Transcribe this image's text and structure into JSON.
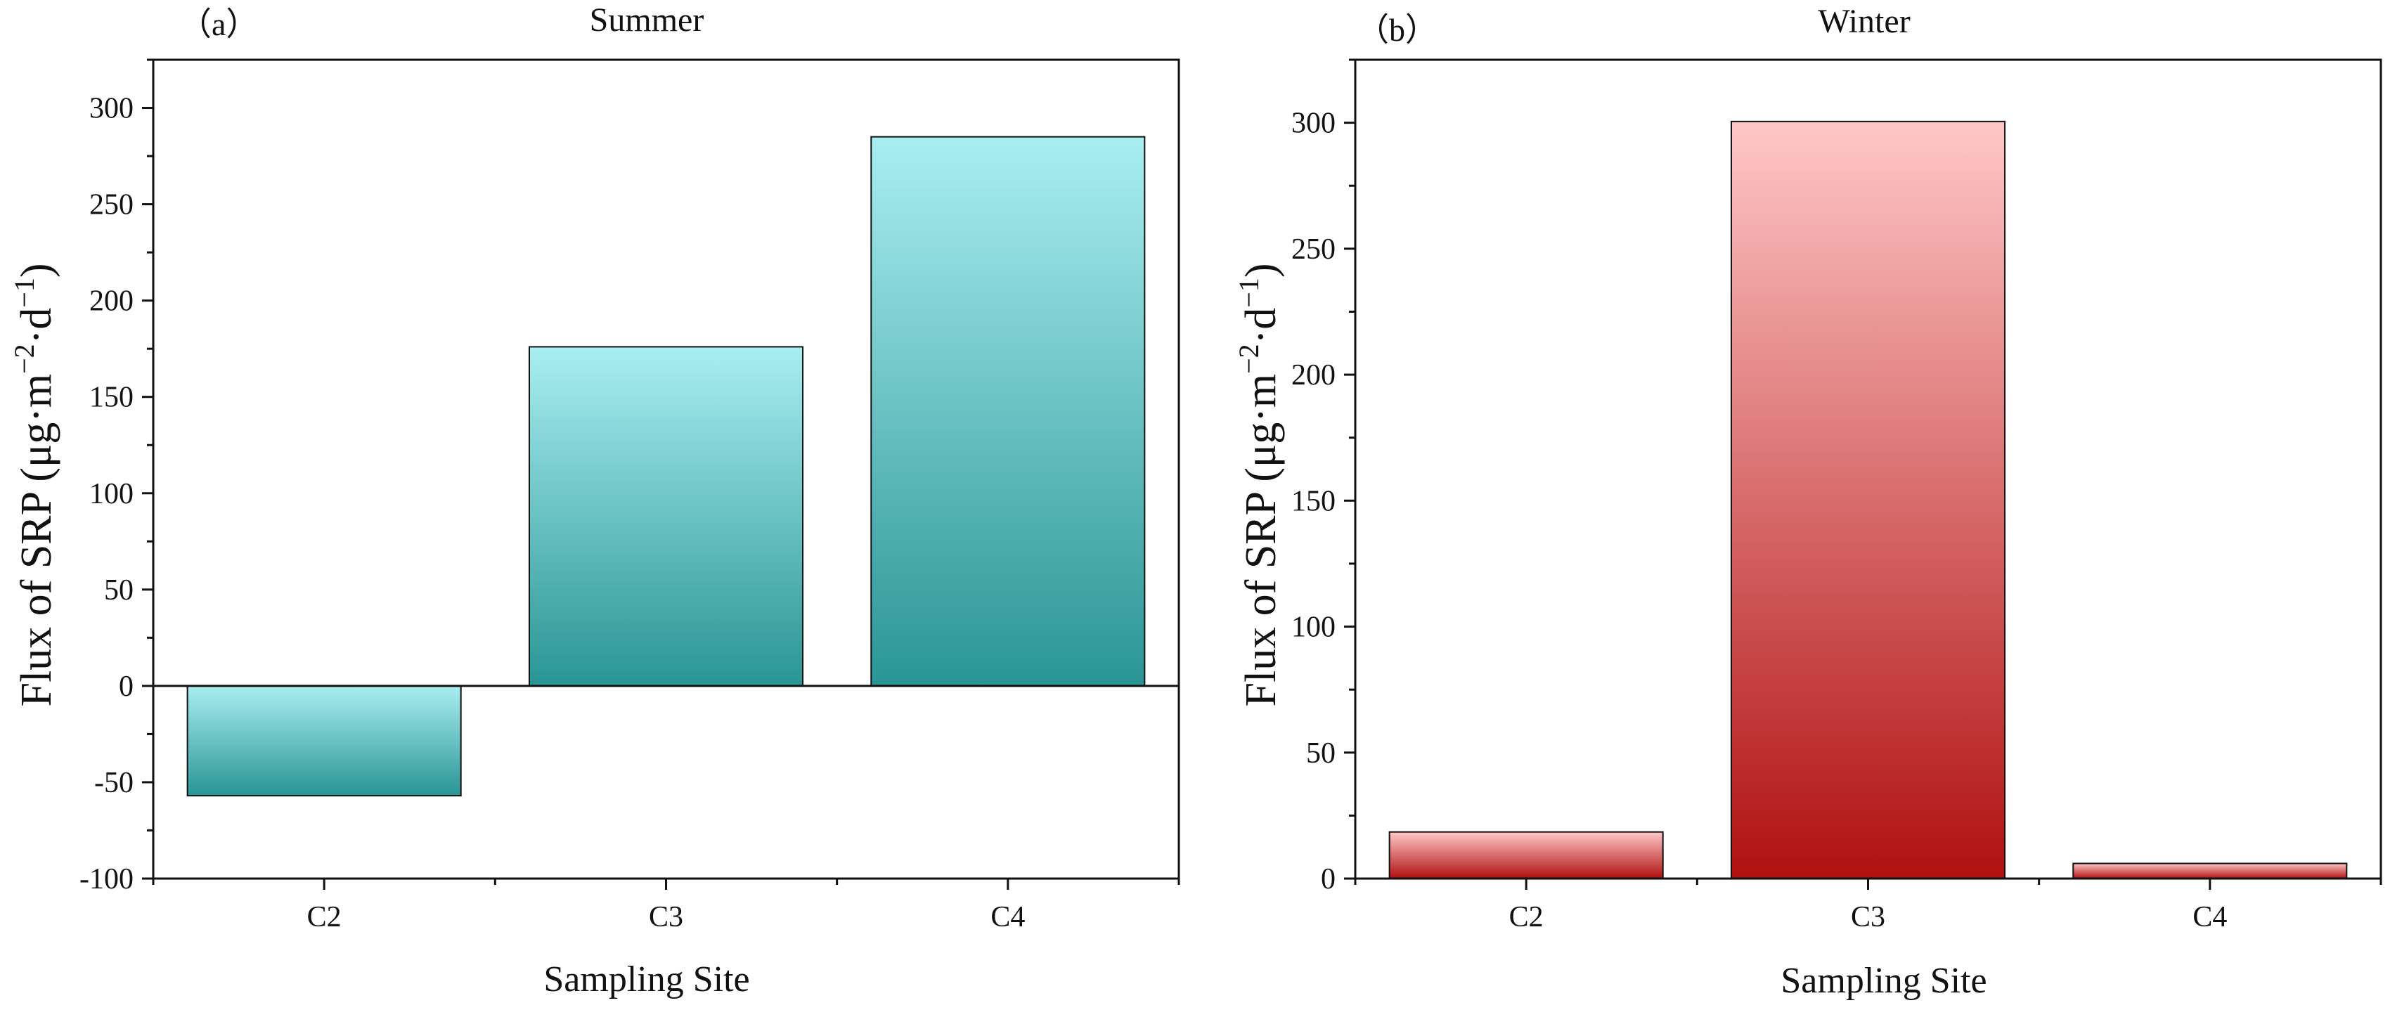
{
  "panels": [
    {
      "panel_label": "（a）",
      "title": "Summer",
      "ylabel_main": "Flux of SRP (μg·m",
      "ylabel_sup1": "−2",
      "ylabel_mid": "·d",
      "ylabel_sup2": "−1",
      "ylabel_end": ")",
      "xlabel": "Sampling Site",
      "gradient": {
        "top": "#a9eef0",
        "bottom": "#2a9595"
      }
    },
    {
      "panel_label": "（b）",
      "title": "Winter",
      "ylabel_main": "Flux of SRP (μg·m",
      "ylabel_sup1": "−2",
      "ylabel_mid": "·d",
      "ylabel_sup2": "−1",
      "ylabel_end": ")",
      "xlabel": "Sampling Site",
      "gradient": {
        "top": "#ffc7c7",
        "bottom": "#b01010"
      }
    }
  ],
  "chart_data": [
    {
      "type": "bar",
      "title": "Summer",
      "xlabel": "Sampling Site",
      "ylabel": "Flux of SRP (μg·m−2·d−1)",
      "categories": [
        "C2",
        "C3",
        "C4"
      ],
      "values": [
        -57,
        176,
        285
      ],
      "ylim": [
        -100,
        325
      ],
      "yticks": [
        -100,
        -50,
        0,
        50,
        100,
        150,
        200,
        250,
        300
      ],
      "ytick_labels": [
        "-100",
        "-50",
        "0",
        "50",
        "100",
        "150",
        "200",
        "250",
        "300"
      ],
      "grid": false,
      "zero_line": true
    },
    {
      "type": "bar",
      "title": "Winter",
      "xlabel": "Sampling Site",
      "ylabel": "Flux of SRP (μg·m−2·d−1)",
      "categories": [
        "C2",
        "C3",
        "C4"
      ],
      "values": [
        18.5,
        300.5,
        6
      ],
      "ylim": [
        0,
        325
      ],
      "yticks": [
        0,
        50,
        100,
        150,
        200,
        250,
        300
      ],
      "ytick_labels": [
        "0",
        "50",
        "100",
        "150",
        "200",
        "250",
        "300"
      ],
      "grid": false,
      "zero_line": false
    }
  ]
}
